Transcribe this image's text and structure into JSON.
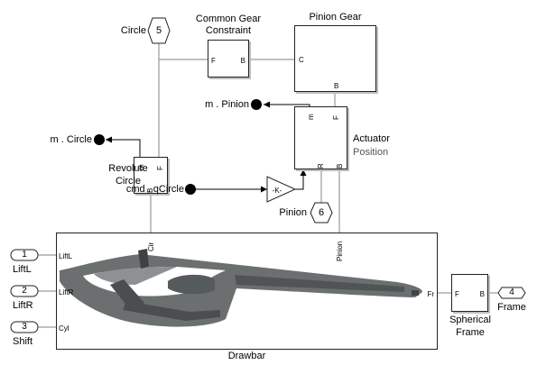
{
  "model": {
    "circle_label": "Circle",
    "pinion_label": "Pinion",
    "common_gear_constraint": {
      "line1": "Common Gear",
      "line2": "Constraint",
      "port_f": "F",
      "port_b": "B"
    },
    "pinion_gear": {
      "title": "Pinion Gear",
      "port_c": "C",
      "port_b": "B"
    },
    "pinion_sensor_label": "m . Pinion",
    "actuator": {
      "title": "Actuator",
      "subtitle": "Position",
      "port_m": "m",
      "port_f": "F",
      "port_r": "R",
      "port_b": "B"
    },
    "circle_sensor_label": "m . Circle",
    "revolute": {
      "line1": "Revolute",
      "line2": "Circle",
      "port_m": "m",
      "port_f": "F",
      "port_b": "B"
    },
    "command_label": "cmd . qCircle",
    "gain": {
      "label": "-K-"
    },
    "drawbar": {
      "title": "Drawbar",
      "port_liftl": "LiftL",
      "port_liftr": "LiftR",
      "port_cyl": "Cyl",
      "port_cir": "Cir",
      "port_pinion": "Pinion",
      "port_fr": "Fr"
    },
    "spherical": {
      "line1": "Spherical",
      "line2": "Frame",
      "port_f": "F",
      "port_b": "B"
    },
    "goto_tags": [
      {
        "number": "5",
        "label": "Circle"
      },
      {
        "number": "6",
        "label": "Pinion"
      }
    ],
    "inports": [
      {
        "number": "1",
        "label": "LiftL"
      },
      {
        "number": "2",
        "label": "LiftR"
      },
      {
        "number": "3",
        "label": "Shift"
      }
    ],
    "outports": [
      {
        "number": "4",
        "label": "Frame"
      }
    ]
  }
}
